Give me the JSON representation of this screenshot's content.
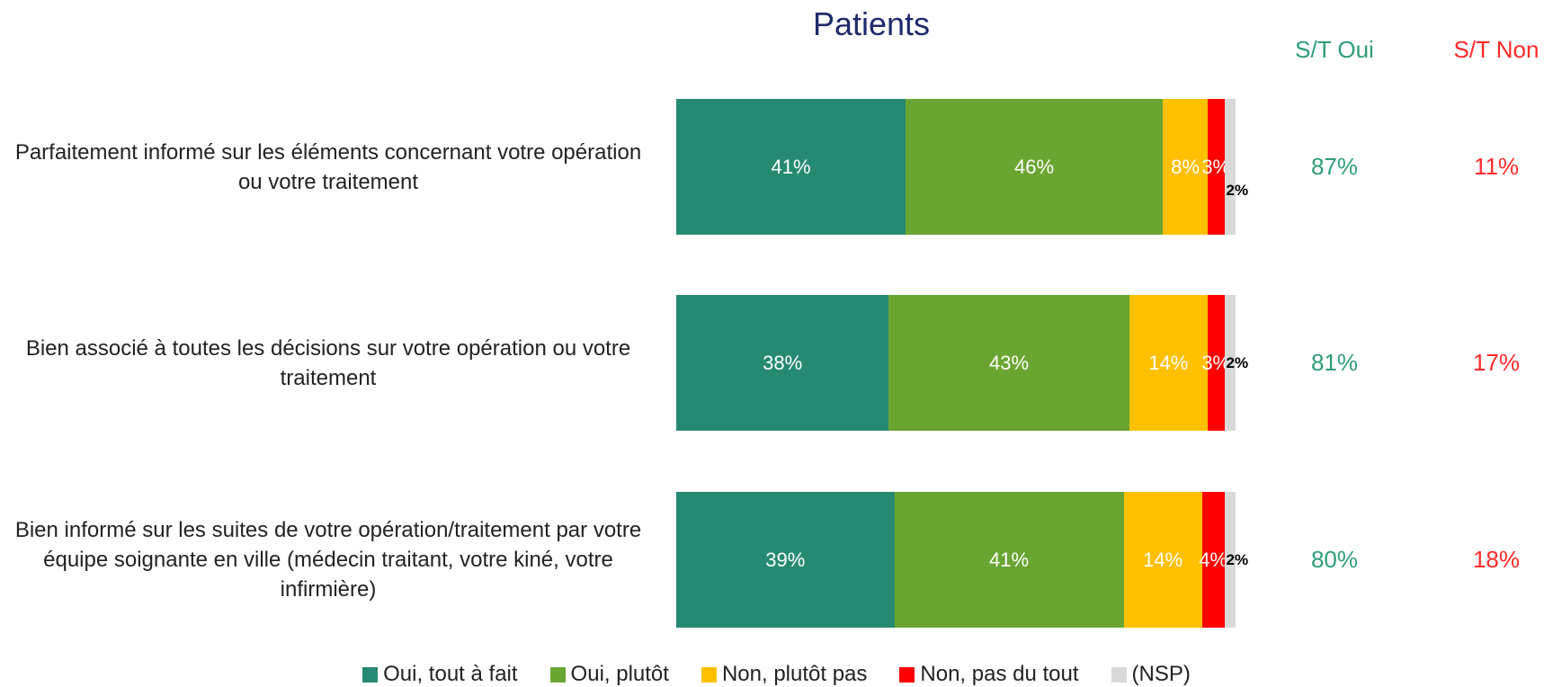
{
  "chart_data": {
    "type": "bar",
    "orientation": "horizontal",
    "stacked": true,
    "title": "Patients",
    "categories": [
      "Parfaitement informé sur les éléments concernant votre opération ou votre traitement",
      "Bien associé à toutes les décisions sur votre opération ou votre traitement",
      "Bien informé sur les suites de votre opération/traitement par votre équipe soignante en ville (médecin traitant, votre kiné, votre infirmière)"
    ],
    "series": [
      {
        "name": "Oui, tout à fait",
        "color": "#268a73",
        "values": [
          41,
          38,
          39
        ],
        "value_labels": [
          "41%",
          "38%",
          "39%"
        ]
      },
      {
        "name": "Oui, plutôt",
        "color": "#6aa532",
        "values": [
          46,
          43,
          41
        ],
        "value_labels": [
          "46%",
          "43%",
          "41%"
        ]
      },
      {
        "name": "Non, plutôt pas",
        "color": "#ffc000",
        "values": [
          8,
          14,
          14
        ],
        "value_labels": [
          "8%",
          "14%",
          "14%"
        ]
      },
      {
        "name": "Non, pas du tout",
        "color": "#ff0000",
        "values": [
          3,
          3,
          4
        ],
        "value_labels": [
          "3%",
          "3%",
          "4%"
        ]
      },
      {
        "name": "(NSP)",
        "color": "#d9d9d9",
        "values": [
          2,
          2,
          2
        ],
        "value_labels": [
          "2%",
          "2%",
          "2%"
        ]
      }
    ],
    "columns": [
      {
        "name": "S/T Oui",
        "color": "#2e9c78",
        "values": [
          87,
          81,
          80
        ],
        "value_labels": [
          "87%",
          "81%",
          "80%"
        ]
      },
      {
        "name": "S/T Non",
        "color": "#ff2a2a",
        "values": [
          11,
          17,
          18
        ],
        "value_labels": [
          "11%",
          "17%",
          "18%"
        ]
      }
    ],
    "legend": "bottom"
  }
}
